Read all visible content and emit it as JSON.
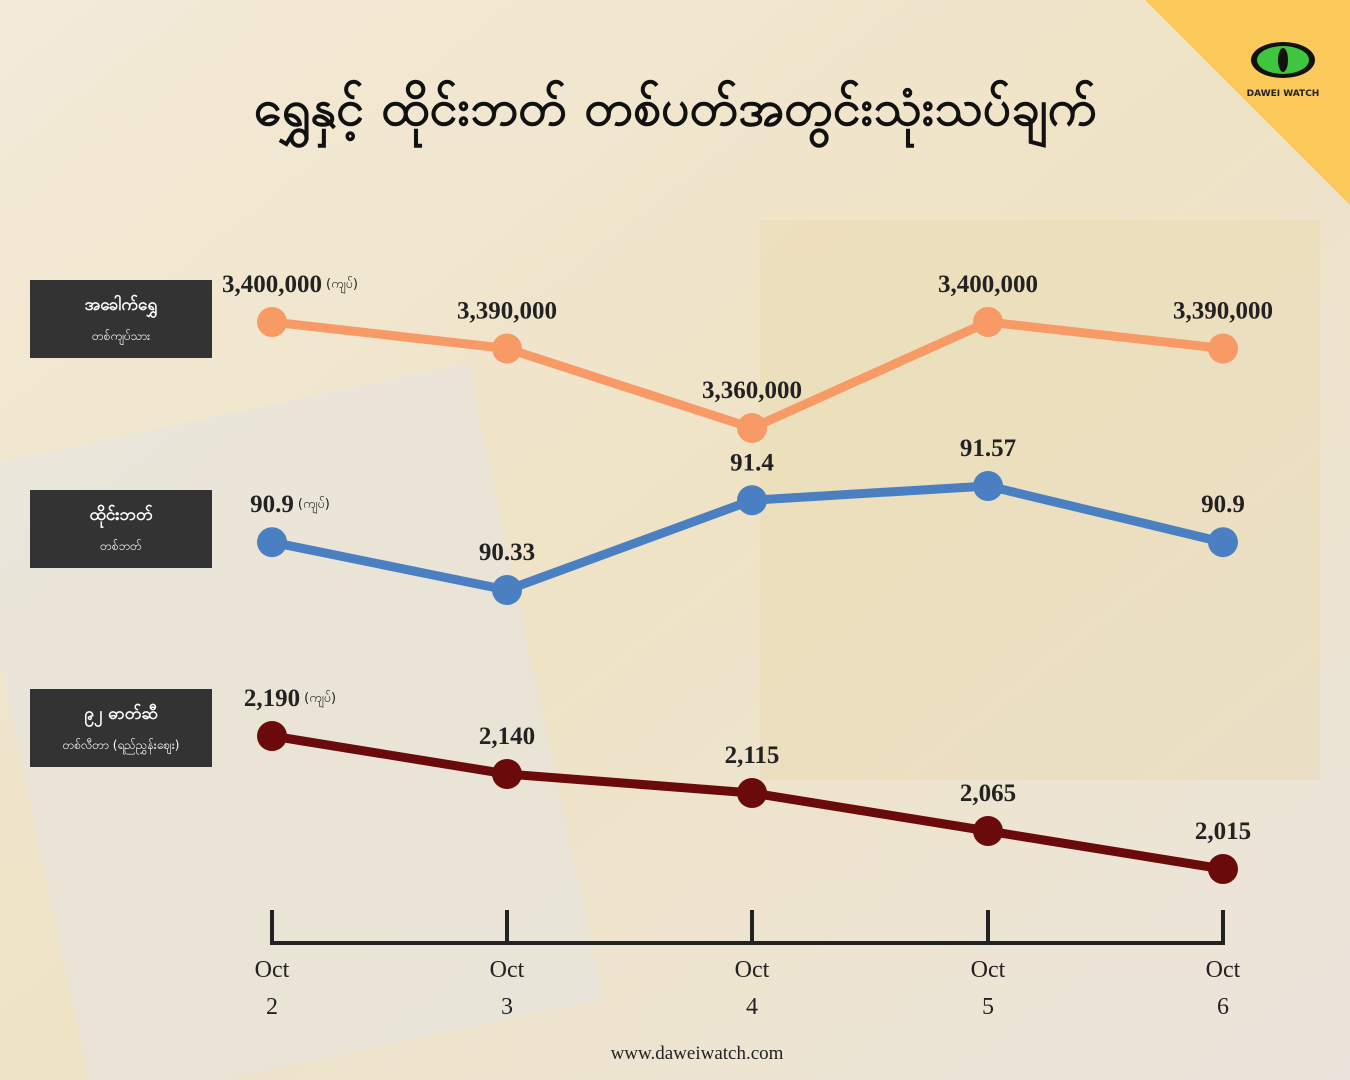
{
  "chart_data": {
    "type": "line",
    "title": "ရွှေနှင့် ထိုင်းဘတ် တစ်ပတ်အတွင်းသုံးသပ်ချက်",
    "logo": "DAWEI WATCH",
    "footer": "www.daweiwatch.com",
    "categories": [
      "Oct 2",
      "Oct 3",
      "Oct 4",
      "Oct 5",
      "Oct 6"
    ],
    "series": [
      {
        "name": "အခေါက်ရွှေ",
        "subtitle": "တစ်ကျပ်သား",
        "unit": "(ကျပ်)",
        "color": "#f79a66",
        "values": [
          3400000,
          3390000,
          3360000,
          3400000,
          3390000
        ],
        "value_labels": [
          "3,400,000",
          "3,390,000",
          "3,360,000",
          "3,400,000",
          "3,390,000"
        ]
      },
      {
        "name": "ထိုင်းဘတ်",
        "subtitle": "တစ်ဘတ်",
        "unit": "(ကျပ်)",
        "color": "#4a7fc1",
        "values": [
          90.9,
          90.33,
          91.4,
          91.57,
          90.9
        ]
      },
      {
        "name": "၉၂ ဓာတ်ဆီ",
        "subtitle": "တစ်လီတာ (ရည်ညွှန်းဈေး)",
        "unit": "(ကျပ်)",
        "color": "#6b0a0a",
        "values": [
          2190,
          2140,
          2115,
          2065,
          2015
        ],
        "value_labels": [
          "2,190",
          "2,140",
          "2,115",
          "2,065",
          "2,015"
        ]
      }
    ]
  }
}
